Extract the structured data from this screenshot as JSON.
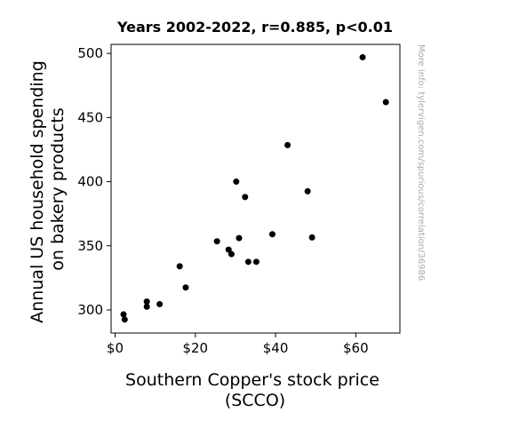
{
  "chart_data": {
    "type": "scatter",
    "title": "Years 2002-2022, r=0.885, p<0.01",
    "xlabel_lines": [
      "Southern Copper's stock price",
      "(SCCO)"
    ],
    "ylabel_lines": [
      "Annual US household spending",
      "on bakery products"
    ],
    "xlim": [
      -1,
      71
    ],
    "ylim": [
      282,
      507
    ],
    "xticks": [
      {
        "value": 0,
        "label": "$0"
      },
      {
        "value": 20,
        "label": "$20"
      },
      {
        "value": 40,
        "label": "$40"
      },
      {
        "value": 60,
        "label": "$60"
      }
    ],
    "yticks": [
      {
        "value": 300,
        "label": "300"
      },
      {
        "value": 350,
        "label": "350"
      },
      {
        "value": 400,
        "label": "400"
      },
      {
        "value": 450,
        "label": "450"
      },
      {
        "value": 500,
        "label": "500"
      }
    ],
    "points": [
      {
        "x": 2.1,
        "y": 296.5
      },
      {
        "x": 2.4,
        "y": 292.5
      },
      {
        "x": 7.9,
        "y": 306.5
      },
      {
        "x": 7.9,
        "y": 302.5
      },
      {
        "x": 11.1,
        "y": 304.5
      },
      {
        "x": 16.1,
        "y": 334.0
      },
      {
        "x": 17.6,
        "y": 317.5
      },
      {
        "x": 25.4,
        "y": 353.5
      },
      {
        "x": 28.3,
        "y": 347.0
      },
      {
        "x": 29.0,
        "y": 343.5
      },
      {
        "x": 30.2,
        "y": 400.0
      },
      {
        "x": 30.9,
        "y": 356.0
      },
      {
        "x": 32.4,
        "y": 388.0
      },
      {
        "x": 33.2,
        "y": 337.5
      },
      {
        "x": 35.2,
        "y": 337.5
      },
      {
        "x": 39.2,
        "y": 359.0
      },
      {
        "x": 43.0,
        "y": 428.5
      },
      {
        "x": 48.0,
        "y": 392.5
      },
      {
        "x": 49.1,
        "y": 356.5
      },
      {
        "x": 61.7,
        "y": 497.0
      },
      {
        "x": 67.5,
        "y": 462.0
      }
    ],
    "point_color": "#000000",
    "grid": false,
    "legend": "none"
  },
  "watermark": "More info: tylervigen.com/spurious/correlation/3698​6"
}
